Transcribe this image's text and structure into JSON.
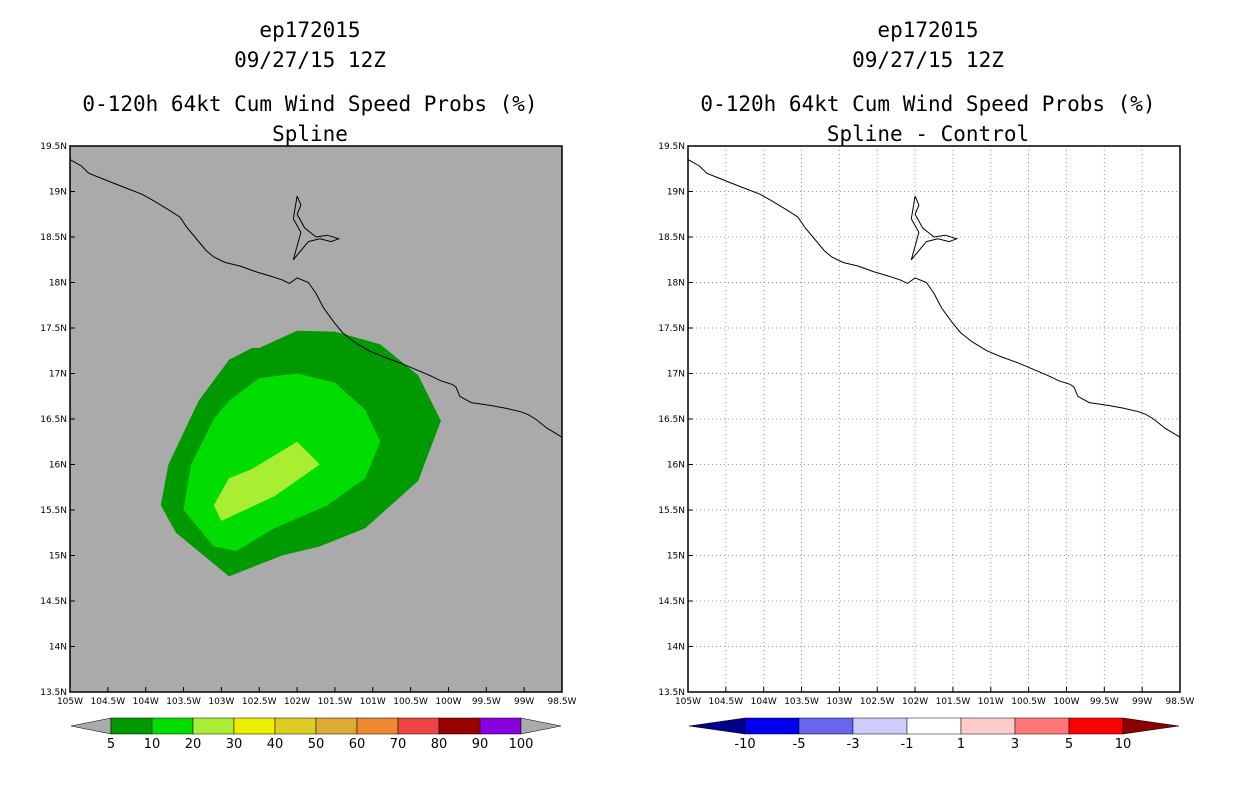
{
  "left_panel": {
    "title_lines": [
      "ep172015",
      "09/27/15 12Z",
      "0-120h 64kt Cum Wind Speed Probs (%)",
      "Spline"
    ]
  },
  "right_panel": {
    "title_lines": [
      "ep172015",
      "09/27/15 12Z",
      "0-120h 64kt Cum Wind Speed Probs (%)",
      "Spline - Control"
    ]
  },
  "chart_data": [
    {
      "type": "heatmap",
      "title": "0-120h 64kt Cum Wind Speed Probs (%)",
      "subtitle": "Spline",
      "xlim": [
        -105,
        -98.5
      ],
      "ylim": [
        13.5,
        19.5
      ],
      "x_tick_values": [
        -105,
        -104.5,
        -104,
        -103.5,
        -103,
        -102.5,
        -102,
        -101.5,
        -101,
        -100.5,
        -100,
        -99.5,
        -99,
        -98.5
      ],
      "x_tick_labels": [
        "105W",
        "104.5W",
        "104W",
        "103.5W",
        "103W",
        "102.5W",
        "102W",
        "101.5W",
        "101W",
        "100.5W",
        "100W",
        "99.5W",
        "99W",
        "98.5W"
      ],
      "y_tick_values": [
        13.5,
        14,
        14.5,
        15,
        15.5,
        16,
        16.5,
        17,
        17.5,
        18,
        18.5,
        19,
        19.5
      ],
      "y_tick_labels": [
        "13.5N",
        "14N",
        "14.5N",
        "15N",
        "15.5N",
        "16N",
        "16.5N",
        "17N",
        "17.5N",
        "18N",
        "18.5N",
        "19N",
        "19.5N"
      ],
      "background_color": "#aaaaaa",
      "grid": false,
      "contours": [
        {
          "level": "5-10",
          "color": "#009900",
          "lon": [
            -102.5,
            -102.0,
            -101.5,
            -100.9,
            -100.4,
            -100.1,
            -100.4,
            -101.1,
            -101.7,
            -102.2,
            -102.9,
            -103.6,
            -103.8,
            -103.7,
            -103.3,
            -102.9,
            -102.6
          ],
          "lat": [
            17.28,
            17.47,
            17.46,
            17.32,
            16.98,
            16.48,
            15.82,
            15.3,
            15.1,
            15.0,
            14.77,
            15.25,
            15.55,
            16.0,
            16.7,
            17.15,
            17.28
          ]
        },
        {
          "level": "10-20",
          "color": "#00dd00",
          "lon": [
            -102.9,
            -102.5,
            -102.0,
            -101.5,
            -101.1,
            -100.9,
            -101.1,
            -101.6,
            -102.3,
            -102.8,
            -103.1,
            -103.5,
            -103.4,
            -103.1,
            -102.9
          ],
          "lat": [
            16.7,
            16.95,
            17.0,
            16.9,
            16.6,
            16.25,
            15.85,
            15.55,
            15.3,
            15.05,
            15.1,
            15.5,
            16.0,
            16.5,
            16.7
          ]
        },
        {
          "level": "20-30",
          "color": "#aaee33",
          "lon": [
            -102.6,
            -102.0,
            -101.7,
            -102.3,
            -103.0,
            -103.1,
            -102.9,
            -102.6
          ],
          "lat": [
            15.95,
            16.25,
            16.0,
            15.65,
            15.38,
            15.55,
            15.85,
            15.95
          ]
        }
      ],
      "colorbar": {
        "labels": [
          "5",
          "10",
          "20",
          "30",
          "40",
          "50",
          "60",
          "70",
          "80",
          "90",
          "100"
        ],
        "colors": [
          "#aaaaaa",
          "#009900",
          "#00dd00",
          "#aaee33",
          "#eeee00",
          "#ddcc22",
          "#ddaa33",
          "#ee8833",
          "#ee4444",
          "#990000",
          "#8800dd",
          "#aaaaaa"
        ]
      }
    },
    {
      "type": "heatmap",
      "title": "0-120h 64kt Cum Wind Speed Probs (%)",
      "subtitle": "Spline - Control",
      "xlim": [
        -105,
        -98.5
      ],
      "ylim": [
        13.5,
        19.5
      ],
      "x_tick_values": [
        -105,
        -104.5,
        -104,
        -103.5,
        -103,
        -102.5,
        -102,
        -101.5,
        -101,
        -100.5,
        -100,
        -99.5,
        -99,
        -98.5
      ],
      "x_tick_labels": [
        "105W",
        "104.5W",
        "104W",
        "103.5W",
        "103W",
        "102.5W",
        "102W",
        "101.5W",
        "101W",
        "100.5W",
        "100W",
        "99.5W",
        "99W",
        "98.5W"
      ],
      "y_tick_values": [
        13.5,
        14,
        14.5,
        15,
        15.5,
        16,
        16.5,
        17,
        17.5,
        18,
        18.5,
        19,
        19.5
      ],
      "y_tick_labels": [
        "13.5N",
        "14N",
        "14.5N",
        "15N",
        "15.5N",
        "16N",
        "16.5N",
        "17N",
        "17.5N",
        "18N",
        "18.5N",
        "19N",
        "19.5N"
      ],
      "background_color": "#ffffff",
      "grid": true,
      "contours": [],
      "colorbar": {
        "labels": [
          "-10",
          "-5",
          "-3",
          "-1",
          "1",
          "3",
          "5",
          "10"
        ],
        "colors": [
          "#000088",
          "#0000ee",
          "#6666ee",
          "#ccccff",
          "#ffffff",
          "#ffcccc",
          "#ff7777",
          "#ff0000",
          "#880000"
        ]
      }
    }
  ],
  "coastline": {
    "lon": [
      -105.0,
      -104.85,
      -104.75,
      -104.6,
      -104.45,
      -104.3,
      -104.05,
      -103.9,
      -103.7,
      -103.55,
      -103.45,
      -103.35,
      -103.2,
      -103.1,
      -102.95,
      -102.75,
      -102.55,
      -102.35,
      -102.2,
      -102.1,
      -102.0,
      -101.85,
      -101.75,
      -101.65,
      -101.5,
      -101.4,
      -101.25,
      -101.05,
      -100.85,
      -100.65,
      -100.45,
      -100.25,
      -100.1,
      -99.95,
      -99.9,
      -99.85,
      -99.7,
      -99.45,
      -99.25,
      -99.05,
      -98.95,
      -98.85,
      -98.7,
      -98.5
    ],
    "lat": [
      19.35,
      19.28,
      19.2,
      19.15,
      19.1,
      19.05,
      18.97,
      18.9,
      18.8,
      18.72,
      18.6,
      18.5,
      18.35,
      18.28,
      18.22,
      18.18,
      18.12,
      18.07,
      18.03,
      17.99,
      18.05,
      18.0,
      17.88,
      17.72,
      17.55,
      17.45,
      17.35,
      17.25,
      17.18,
      17.12,
      17.05,
      16.98,
      16.92,
      16.88,
      16.85,
      16.75,
      16.68,
      16.65,
      16.62,
      16.58,
      16.55,
      16.5,
      16.4,
      16.3
    ]
  },
  "lake": {
    "lon": [
      -102.0,
      -101.95,
      -102.0,
      -101.9,
      -101.75,
      -101.6,
      -101.45,
      -101.55,
      -101.7,
      -101.85,
      -101.95,
      -102.05,
      -102.0,
      -101.95,
      -102.05,
      -102.0
    ],
    "lat": [
      18.95,
      18.85,
      18.75,
      18.6,
      18.5,
      18.52,
      18.48,
      18.45,
      18.48,
      18.45,
      18.35,
      18.25,
      18.4,
      18.55,
      18.7,
      18.95
    ]
  }
}
